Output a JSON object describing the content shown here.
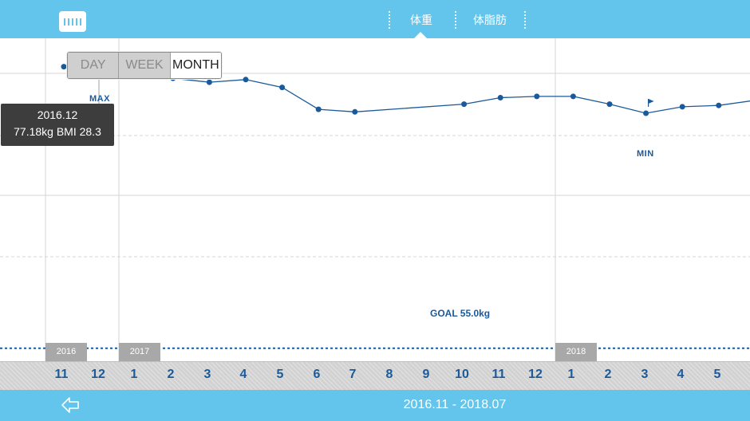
{
  "header": {
    "tabs": [
      {
        "label": "体重",
        "active": true
      },
      {
        "label": "体脂肪",
        "active": false
      }
    ],
    "accent_color": "#63c5ec"
  },
  "period_selector": {
    "options": [
      "DAY",
      "WEEK",
      "MONTH"
    ],
    "selected": "MONTH"
  },
  "tooltip": {
    "date": "2016.12",
    "value": "77.18kg  BMI 28.3"
  },
  "markers": {
    "max_label": "MAX",
    "min_label": "MIN"
  },
  "goal": {
    "label": "GOAL 55.0kg",
    "value": 55.0
  },
  "timeline": {
    "years": [
      "2016",
      "2017",
      "2018"
    ],
    "months": [
      "11",
      "12",
      "1",
      "2",
      "3",
      "4",
      "5",
      "6",
      "7",
      "8",
      "9",
      "10",
      "11",
      "12",
      "1",
      "2",
      "3",
      "4",
      "5"
    ]
  },
  "footer": {
    "range": "2016.11 - 2018.07"
  },
  "chart_data": {
    "type": "line",
    "x": [
      "2016.11",
      "2016.12",
      "2017.01",
      "2017.02",
      "2017.03",
      "2017.04",
      "2017.05",
      "2017.06",
      "2017.07",
      "2017.10",
      "2017.11",
      "2017.12",
      "2018.01",
      "2018.02",
      "2018.03",
      "2018.04",
      "2018.05",
      "2018.06"
    ],
    "values": [
      76.8,
      77.18,
      77.1,
      75.9,
      75.6,
      75.8,
      75.2,
      73.5,
      73.3,
      73.9,
      74.4,
      74.5,
      74.5,
      73.9,
      73.2,
      73.7,
      73.8,
      74.2
    ],
    "ylim": [
      54,
      79
    ],
    "max_point": "2016.12",
    "min_point": "2018.03",
    "goal": 55.0
  }
}
